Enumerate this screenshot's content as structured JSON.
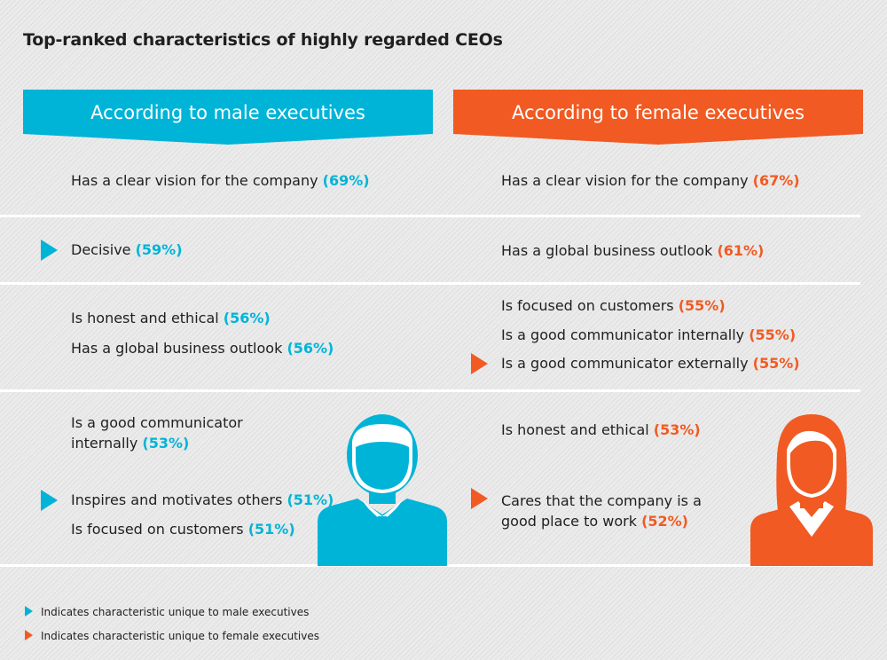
{
  "title": "Top-ranked characteristics of highly regarded CEOs",
  "male": {
    "header": "According to male executives",
    "rows": [
      {
        "text": "Has a clear vision for the company ",
        "pct": "(69%)"
      },
      {
        "text": "Decisive ",
        "pct": "(59%)"
      },
      {
        "text": "Is honest and ethical ",
        "pct": "(56%)"
      },
      {
        "text": "Has a global business outlook ",
        "pct": "(56%)"
      },
      {
        "text": "Is a good communicator",
        "text2": "internally ",
        "pct": "(53%)"
      },
      {
        "text": "Inspires and motivates others ",
        "pct": "(51%)"
      },
      {
        "text": "Is focused on customers ",
        "pct": "(51%)"
      }
    ]
  },
  "female": {
    "header": "According to female executives",
    "rows": [
      {
        "text": "Has a clear vision for the company ",
        "pct": "(67%)"
      },
      {
        "text": "Has a global business outlook ",
        "pct": "(61%)"
      },
      {
        "text": "Is focused on customers ",
        "pct": "(55%)"
      },
      {
        "text": "Is a good communicator internally ",
        "pct": "(55%)"
      },
      {
        "text": "Is a good communicator externally ",
        "pct": "(55%)"
      },
      {
        "text": "Is honest and ethical ",
        "pct": "(53%)"
      },
      {
        "text": "Cares that the company is a",
        "text2": "good place to work ",
        "pct": "(52%)"
      }
    ]
  },
  "legend": {
    "male": "Indicates characteristic unique to male executives",
    "female": "Indicates characteristic unique to female executives"
  },
  "colors": {
    "male": "#00b4d8",
    "female": "#f15a22"
  },
  "icons": {
    "male_figure": "businessman-icon",
    "female_figure": "businesswoman-icon",
    "marker": "triangle-right-icon"
  }
}
